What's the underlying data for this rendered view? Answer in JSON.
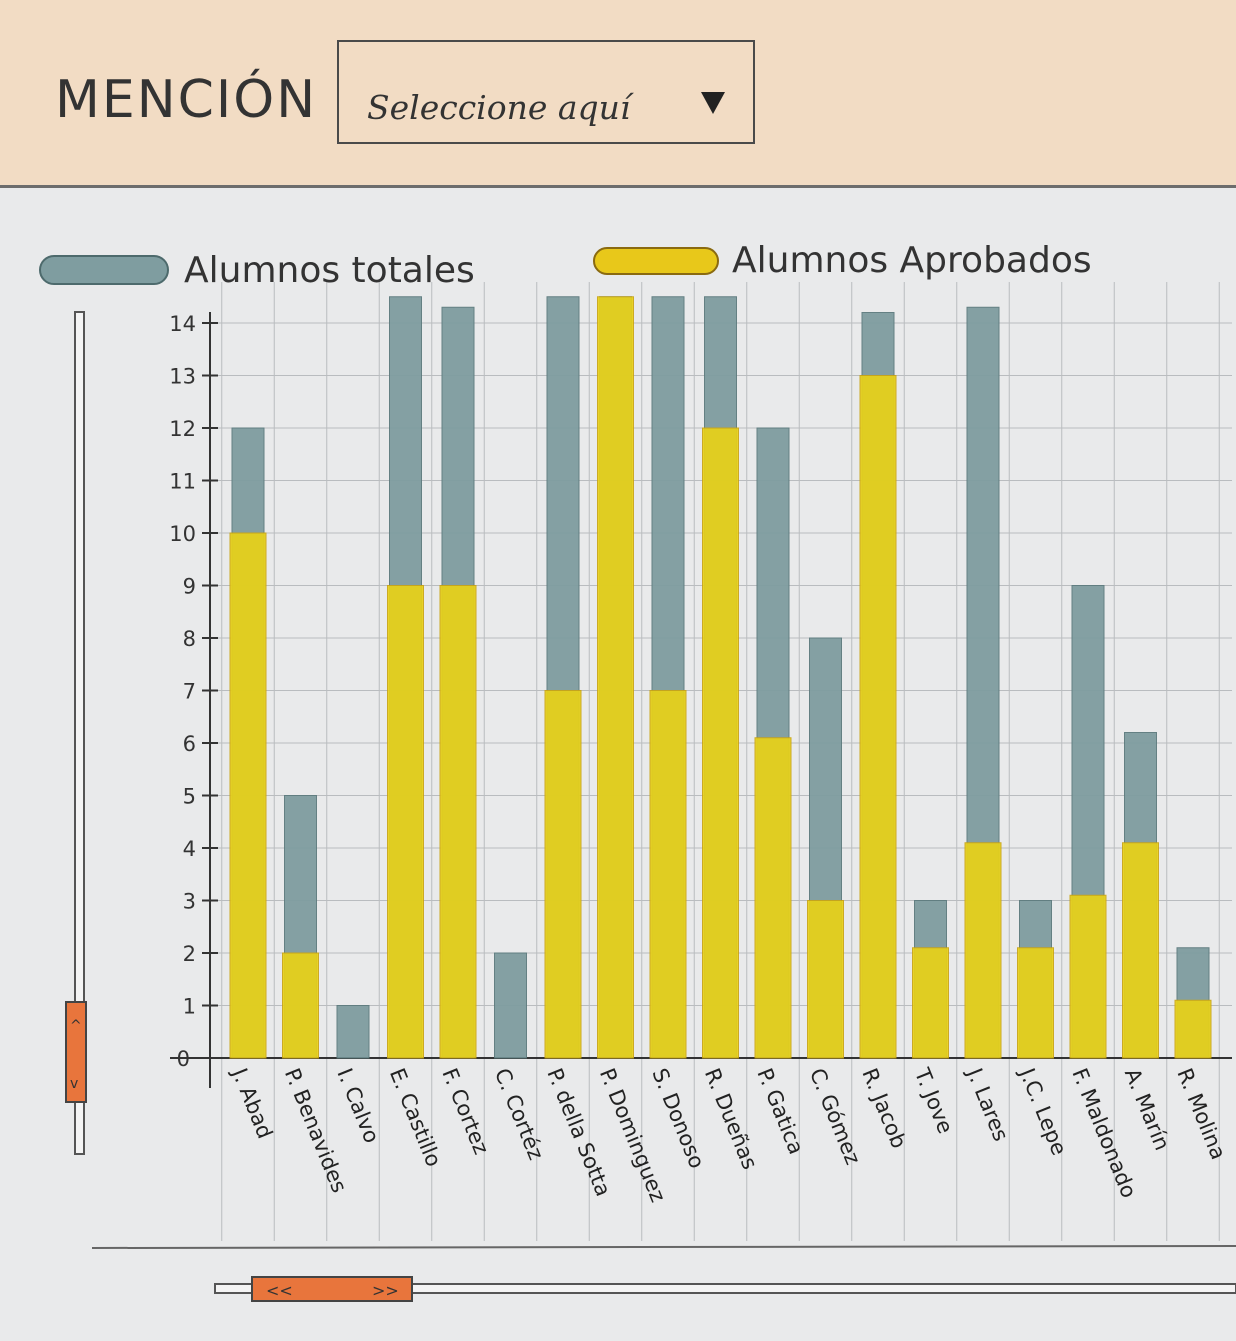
{
  "header": {
    "label": "MENCIÓN",
    "select": {
      "placeholder": "Seleccione aquí"
    }
  },
  "colors": {
    "total": "#7f9da0",
    "passed": "#e8d118",
    "header_bg": "#f2dcc4",
    "page_bg": "#e9eaeb",
    "scroll_thumb": "#e8753c"
  },
  "chart_data": {
    "type": "bar",
    "grid": true,
    "ylim": [
      0,
      14
    ],
    "yticks": [
      "0",
      "1",
      "2",
      "3",
      "4",
      "5",
      "6",
      "7",
      "8",
      "9",
      "10",
      "11",
      "12",
      "13",
      "14"
    ],
    "legend": {
      "placement": "top"
    },
    "categories": [
      "J. Abad",
      "P. Benavides",
      "I. Calvo",
      "E. Castillo",
      "F. Cortez",
      "C. Cortéz",
      "P. della Sotta",
      "P. Dominguez",
      "S. Donoso",
      "R. Dueñas",
      "P. Gatica",
      "C. Gómez",
      "R. Jacob",
      "T. Jove",
      "J. Lares",
      "J.C. Lepe",
      "F. Maldonado",
      "A. Marín",
      "R. Molina"
    ],
    "series": [
      {
        "name": "Alumnos totales",
        "values": [
          12,
          5,
          1,
          14.5,
          14.3,
          2,
          14.5,
          14.5,
          14.5,
          14.5,
          12,
          8,
          14.2,
          3,
          14.3,
          3,
          9,
          6.2,
          2.1
        ]
      },
      {
        "name": "Alumnos Aprobados",
        "values": [
          10,
          2,
          0,
          9,
          9,
          0,
          7,
          14.5,
          7,
          12,
          6.1,
          3,
          13,
          2.1,
          4.1,
          2.1,
          3.1,
          4.1,
          1.1
        ]
      }
    ]
  }
}
